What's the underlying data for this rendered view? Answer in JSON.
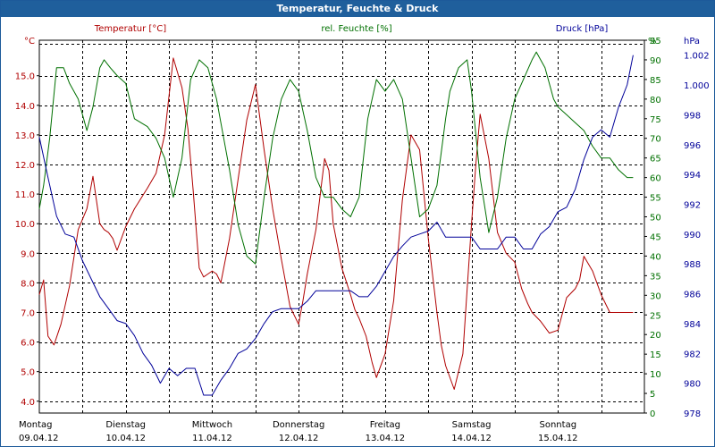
{
  "window": {
    "title": "Temperatur, Feuchte & Druck"
  },
  "colors": {
    "temperature": "#b00000",
    "humidity": "#007000",
    "pressure": "#000099",
    "titlebar": "#1f5f9c",
    "grid": "#000000"
  },
  "chart_data": {
    "type": "line",
    "title": "Temperatur, Feuchte & Druck",
    "grid": true,
    "xlim": [
      0,
      7
    ],
    "x_ticks": [
      {
        "day": "Montag",
        "date": "09.04.12",
        "x": 0
      },
      {
        "day": "Dienstag",
        "date": "10.04.12",
        "x": 1
      },
      {
        "day": "Mittwoch",
        "date": "11.04.12",
        "x": 2
      },
      {
        "day": "Donnerstag",
        "date": "12.04.12",
        "x": 3
      },
      {
        "day": "Freitag",
        "date": "13.04.12",
        "x": 4
      },
      {
        "day": "Samstag",
        "date": "14.04.12",
        "x": 5
      },
      {
        "day": "Sonntag",
        "date": "15.04.12",
        "x": 6
      }
    ],
    "axes": {
      "left": {
        "label": "Temperatur [°C]",
        "unit": "°C",
        "ylim": [
          3.6,
          16.2
        ],
        "ticks": [
          "4.0",
          "5.0",
          "6.0",
          "7.0",
          "8.0",
          "9.0",
          "10.0",
          "11.0",
          "12.0",
          "13.0",
          "14.0",
          "15.0"
        ]
      },
      "right1": {
        "label": "rel. Feuchte [%]",
        "unit": "%",
        "ylim": [
          0,
          95
        ],
        "ticks": [
          "0",
          "5",
          "10",
          "15",
          "20",
          "25",
          "30",
          "35",
          "40",
          "45",
          "50",
          "55",
          "60",
          "65",
          "70",
          "75",
          "80",
          "85",
          "90",
          "95"
        ]
      },
      "right2": {
        "label": "Druck [hPa]",
        "unit": "hPa",
        "ylim": [
          978,
          1003
        ],
        "ticks": [
          "978",
          "980",
          "982",
          "984",
          "986",
          "988",
          "990",
          "992",
          "994",
          "996",
          "998",
          "1.000",
          "1.002"
        ]
      }
    },
    "series": [
      {
        "name": "Temperatur [°C]",
        "axis": "left",
        "x": [
          0,
          0.05,
          0.1,
          0.17,
          0.25,
          0.35,
          0.45,
          0.55,
          0.62,
          0.7,
          0.75,
          0.8,
          0.85,
          0.9,
          1.0,
          1.1,
          1.25,
          1.35,
          1.45,
          1.55,
          1.65,
          1.72,
          1.78,
          1.85,
          1.9,
          1.95,
          2.0,
          2.05,
          2.1,
          2.2,
          2.3,
          2.4,
          2.5,
          2.6,
          2.7,
          2.8,
          2.9,
          3.0,
          3.05,
          3.1,
          3.2,
          3.3,
          3.35,
          3.4,
          3.5,
          3.6,
          3.65,
          3.7,
          3.78,
          3.85,
          3.9,
          4.0,
          4.1,
          4.2,
          4.3,
          4.4,
          4.5,
          4.6,
          4.65,
          4.7,
          4.8,
          4.9,
          4.95,
          5.0,
          5.05,
          5.1,
          5.2,
          5.3,
          5.4,
          5.5,
          5.58,
          5.65,
          5.7,
          5.8,
          5.9,
          6.0,
          6.1,
          6.2,
          6.25,
          6.3,
          6.4,
          6.5,
          6.6,
          6.7,
          6.8,
          6.87
        ],
        "values": [
          7.6,
          8.1,
          6.2,
          5.9,
          6.6,
          7.9,
          9.8,
          10.5,
          11.6,
          10.0,
          9.8,
          9.7,
          9.5,
          9.1,
          9.9,
          10.5,
          11.2,
          11.7,
          13.0,
          15.6,
          14.6,
          13.2,
          11.1,
          8.5,
          8.2,
          8.3,
          8.4,
          8.3,
          8.0,
          9.5,
          11.5,
          13.5,
          14.7,
          12.5,
          10.5,
          8.8,
          7.2,
          6.6,
          7.4,
          8.3,
          9.8,
          12.2,
          11.8,
          10.0,
          8.5,
          7.6,
          7.1,
          6.8,
          6.2,
          5.3,
          4.8,
          5.6,
          7.4,
          10.8,
          13.0,
          12.5,
          9.5,
          7.0,
          5.9,
          5.2,
          4.4,
          5.6,
          7.8,
          10.0,
          12.0,
          13.7,
          12.2,
          9.7,
          9.0,
          8.7,
          7.8,
          7.3,
          7.0,
          6.7,
          6.3,
          6.4,
          7.5,
          7.8,
          8.1,
          8.9,
          8.4,
          7.6,
          7.0,
          7.0,
          7.0,
          7.0
        ]
      },
      {
        "name": "rel. Feuchte [%]",
        "axis": "right1",
        "x": [
          0,
          0.05,
          0.12,
          0.2,
          0.28,
          0.35,
          0.45,
          0.55,
          0.62,
          0.7,
          0.75,
          0.82,
          0.9,
          1.0,
          1.1,
          1.25,
          1.35,
          1.45,
          1.55,
          1.65,
          1.75,
          1.85,
          1.95,
          2.05,
          2.1,
          2.2,
          2.3,
          2.4,
          2.5,
          2.6,
          2.7,
          2.8,
          2.9,
          3.0,
          3.1,
          3.2,
          3.3,
          3.4,
          3.5,
          3.6,
          3.7,
          3.8,
          3.9,
          4.0,
          4.1,
          4.2,
          4.3,
          4.4,
          4.5,
          4.6,
          4.7,
          4.75,
          4.85,
          4.95,
          5.0,
          5.1,
          5.2,
          5.3,
          5.4,
          5.5,
          5.6,
          5.7,
          5.75,
          5.85,
          5.95,
          6.0,
          6.1,
          6.2,
          6.3,
          6.4,
          6.5,
          6.6,
          6.7,
          6.8,
          6.87
        ],
        "values": [
          52,
          58,
          70,
          88,
          88,
          84,
          80,
          72,
          78,
          88,
          90,
          88,
          86,
          84,
          75,
          73,
          70,
          65,
          55,
          65,
          85,
          90,
          88,
          80,
          74,
          62,
          48,
          40,
          38,
          55,
          70,
          80,
          85,
          82,
          72,
          60,
          55,
          55,
          52,
          50,
          55,
          75,
          85,
          82,
          85,
          80,
          65,
          50,
          52,
          58,
          75,
          82,
          88,
          90,
          82,
          60,
          46,
          55,
          70,
          80,
          85,
          90,
          92,
          88,
          80,
          78,
          76,
          74,
          72,
          68,
          65,
          65,
          62,
          60,
          60
        ]
      },
      {
        "name": "Druck [hPa]",
        "axis": "right2",
        "x": [
          0,
          0.1,
          0.2,
          0.3,
          0.4,
          0.5,
          0.6,
          0.7,
          0.8,
          0.9,
          1.0,
          1.1,
          1.2,
          1.3,
          1.4,
          1.5,
          1.6,
          1.7,
          1.8,
          1.9,
          2.0,
          2.1,
          2.2,
          2.3,
          2.4,
          2.5,
          2.6,
          2.7,
          2.8,
          2.9,
          3.0,
          3.1,
          3.2,
          3.3,
          3.4,
          3.5,
          3.6,
          3.7,
          3.8,
          3.9,
          4.0,
          4.1,
          4.2,
          4.3,
          4.4,
          4.5,
          4.6,
          4.7,
          4.8,
          4.9,
          5.0,
          5.1,
          5.2,
          5.3,
          5.4,
          5.5,
          5.6,
          5.7,
          5.8,
          5.9,
          6.0,
          6.1,
          6.2,
          6.3,
          6.4,
          6.5,
          6.6,
          6.7,
          6.8,
          6.87
        ],
        "values": [
          996.5,
          993.8,
          991.2,
          990.0,
          989.8,
          988.2,
          987.0,
          985.8,
          985.0,
          984.2,
          984.0,
          983.2,
          982.0,
          981.2,
          980.0,
          981.0,
          980.5,
          981.0,
          981.0,
          979.2,
          979.2,
          980.2,
          981.0,
          982.0,
          982.3,
          983.0,
          984.0,
          984.8,
          985.0,
          985.0,
          985.0,
          985.5,
          986.2,
          986.2,
          986.2,
          986.2,
          986.2,
          985.8,
          985.8,
          986.5,
          987.5,
          988.5,
          989.2,
          989.8,
          990.0,
          990.2,
          990.8,
          989.8,
          989.8,
          989.8,
          989.8,
          989.0,
          989.0,
          989.0,
          989.8,
          989.8,
          989.0,
          989.0,
          990.0,
          990.5,
          991.5,
          991.8,
          993.0,
          995.0,
          996.5,
          997.0,
          996.5,
          998.5,
          1000.0,
          1002.0
        ]
      }
    ]
  }
}
